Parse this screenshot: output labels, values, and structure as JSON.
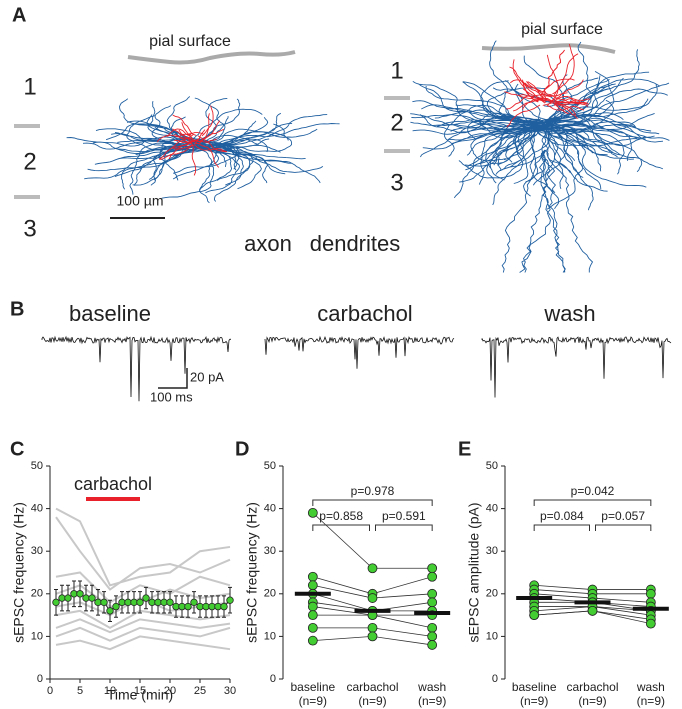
{
  "panel_a": {
    "label": "A",
    "pial_left": "pial surface",
    "pial_right": "pial surface",
    "layers_left": [
      "1",
      "2",
      "3"
    ],
    "layers_right": [
      "1",
      "2",
      "3"
    ],
    "scale_bar": "100 µm",
    "legend": [
      {
        "name": "axon",
        "color": "#1f5fa0"
      },
      {
        "name": "dendrites",
        "color": "#e8212a"
      }
    ]
  },
  "panel_b": {
    "label": "B",
    "conditions": [
      "baseline",
      "carbachol",
      "wash"
    ],
    "condition_colors": [
      "#333333",
      "#e8212a",
      "#333333"
    ],
    "scale_y": "20 pA",
    "scale_x": "100 ms"
  },
  "chart_data": [
    {
      "type": "line",
      "label": "C",
      "annotation": {
        "text": "carbachol",
        "x": [
          6,
          15
        ],
        "color": "#e8212a"
      },
      "xlabel": "Time (min)",
      "ylabel": "sEPSC frequency (Hz)",
      "xlim": [
        0,
        30
      ],
      "ylim": [
        0,
        50
      ],
      "xticks": [
        0,
        5,
        10,
        15,
        20,
        25,
        30
      ],
      "yticks": [
        0,
        10,
        20,
        30,
        40,
        50
      ],
      "series": [
        {
          "color": "#c8c8c8",
          "x": [
            1,
            5,
            10,
            15,
            20,
            25,
            30
          ],
          "values": [
            40,
            37,
            22,
            24,
            25,
            30,
            31
          ]
        },
        {
          "color": "#c8c8c8",
          "x": [
            1,
            5,
            10,
            15,
            20,
            25,
            30
          ],
          "values": [
            38,
            30,
            21,
            26,
            27,
            25,
            28
          ]
        },
        {
          "color": "#c8c8c8",
          "x": [
            1,
            5,
            10,
            15,
            20,
            25,
            30
          ],
          "values": [
            24,
            25,
            18,
            22,
            20,
            24,
            22
          ]
        },
        {
          "color": "#c8c8c8",
          "x": [
            1,
            5,
            10,
            15,
            20,
            25,
            30
          ],
          "values": [
            20,
            22,
            17,
            18,
            21,
            19,
            20
          ]
        },
        {
          "color": "#c8c8c8",
          "x": [
            1,
            5,
            10,
            15,
            20,
            25,
            30
          ],
          "values": [
            17,
            18,
            15,
            19,
            16,
            17,
            18
          ]
        },
        {
          "color": "#c8c8c8",
          "x": [
            1,
            5,
            10,
            15,
            20,
            25,
            30
          ],
          "values": [
            15,
            16,
            12,
            16,
            15,
            14,
            15
          ]
        },
        {
          "color": "#c8c8c8",
          "x": [
            1,
            5,
            10,
            15,
            20,
            25,
            30
          ],
          "values": [
            12,
            14,
            11,
            14,
            13,
            12,
            13
          ]
        },
        {
          "color": "#c8c8c8",
          "x": [
            1,
            5,
            10,
            15,
            20,
            25,
            30
          ],
          "values": [
            10,
            12,
            9,
            12,
            11,
            10,
            12
          ]
        },
        {
          "color": "#c8c8c8",
          "x": [
            1,
            5,
            10,
            15,
            20,
            25,
            30
          ],
          "values": [
            8,
            9,
            7,
            10,
            9,
            8,
            7
          ]
        },
        {
          "color": "#44cc33",
          "x": [
            1,
            2,
            3,
            4,
            5,
            6,
            7,
            8,
            9,
            10,
            11,
            12,
            13,
            14,
            15,
            16,
            17,
            18,
            19,
            20,
            21,
            22,
            23,
            24,
            25,
            26,
            27,
            28,
            29,
            30
          ],
          "values": [
            18,
            19,
            19,
            20,
            20,
            19,
            19,
            18,
            18,
            16,
            17,
            18,
            18,
            18,
            18,
            19,
            18,
            18,
            18,
            18,
            17,
            17,
            17,
            18,
            17,
            17,
            17,
            17,
            17,
            18.5
          ],
          "errors": [
            3,
            3,
            3,
            3,
            3,
            3,
            3,
            3,
            2.5,
            2.5,
            2.5,
            2.5,
            2.5,
            2.5,
            2.5,
            2.5,
            2.5,
            2.5,
            2.5,
            2.5,
            2.5,
            2.5,
            2.5,
            2.5,
            2.5,
            2.5,
            2.5,
            2.5,
            2.5,
            3
          ]
        }
      ]
    },
    {
      "type": "paired",
      "label": "D",
      "ylabel": "sEPSC frequency (Hz)",
      "categories": [
        "baseline",
        "carbachol",
        "wash"
      ],
      "n_labels": [
        "(n=9)",
        "(n=9)",
        "(n=9)"
      ],
      "category_colors": [
        "#222222",
        "#e8212a",
        "#222222"
      ],
      "point_color": "#44cc33",
      "ylim": [
        0,
        50
      ],
      "yticks": [
        0,
        10,
        20,
        30,
        40,
        50
      ],
      "subjects": [
        [
          39,
          26,
          26
        ],
        [
          24,
          20,
          24
        ],
        [
          22,
          19,
          20
        ],
        [
          20,
          16,
          18
        ],
        [
          18,
          16,
          16
        ],
        [
          17,
          15,
          15
        ],
        [
          15,
          15,
          12
        ],
        [
          12,
          12,
          10
        ],
        [
          9,
          10,
          8
        ]
      ],
      "means": [
        20,
        16,
        15.5
      ],
      "comparisons": [
        {
          "pair": [
            0,
            1
          ],
          "text": "p=0.858"
        },
        {
          "pair": [
            1,
            2
          ],
          "text": "p=0.591"
        },
        {
          "pair": [
            0,
            2
          ],
          "text": "p=0.978"
        }
      ]
    },
    {
      "type": "paired",
      "label": "E",
      "ylabel": "sEPSC amplitude (pA)",
      "categories": [
        "baseline",
        "carbachol",
        "wash"
      ],
      "n_labels": [
        "(n=9)",
        "(n=9)",
        "(n=9)"
      ],
      "category_colors": [
        "#222222",
        "#e8212a",
        "#222222"
      ],
      "point_color": "#44cc33",
      "ylim": [
        0,
        50
      ],
      "yticks": [
        0,
        10,
        20,
        30,
        40,
        50
      ],
      "subjects": [
        [
          22,
          21,
          21
        ],
        [
          21,
          20,
          20
        ],
        [
          20,
          19,
          18
        ],
        [
          19,
          18,
          17
        ],
        [
          18,
          18,
          16
        ],
        [
          17,
          17,
          16
        ],
        [
          16,
          17,
          15
        ],
        [
          15,
          16,
          14
        ],
        [
          15,
          16,
          13
        ]
      ],
      "means": [
        19,
        18,
        16.5
      ],
      "comparisons": [
        {
          "pair": [
            0,
            1
          ],
          "text": "p=0.084"
        },
        {
          "pair": [
            1,
            2
          ],
          "text": "p=0.057"
        },
        {
          "pair": [
            0,
            2
          ],
          "text": "p=0.042"
        }
      ]
    }
  ]
}
